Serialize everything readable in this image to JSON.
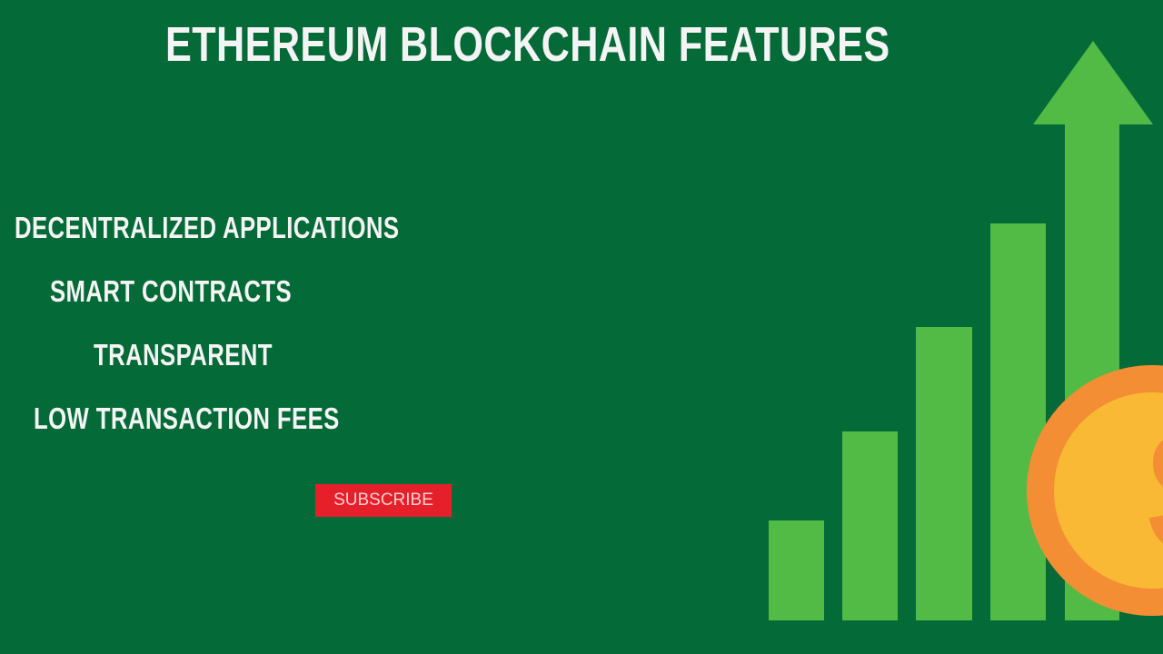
{
  "title": "ETHEREUM BLOCKCHAIN FEATURES",
  "features": [
    {
      "label": "DECENTRALIZED APPLICATIONS"
    },
    {
      "label": "SMART CONTRACTS"
    },
    {
      "label": "TRANSPARENT"
    },
    {
      "label": "LOW TRANSACTION FEES"
    }
  ],
  "subscribe_label": "SUBSCRIBE",
  "illustration": {
    "icons": [
      "rising-bar-chart-icon",
      "up-arrow-icon",
      "dollar-coin-icon"
    ],
    "coin_symbol": "$",
    "colors": {
      "background": "#046a38",
      "bars": "#52bb45",
      "coin_outer": "#f48e34",
      "coin_inner": "#f9b934",
      "button": "#e5202a"
    }
  }
}
